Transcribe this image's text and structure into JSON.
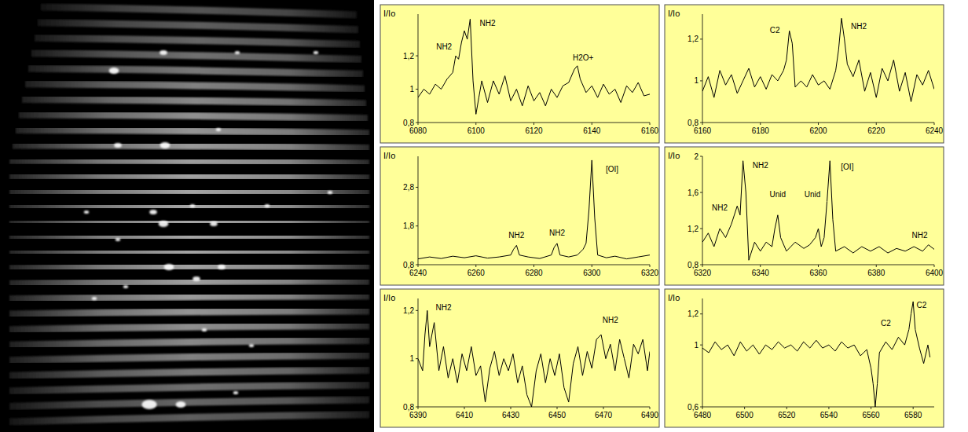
{
  "chart_data": [
    {
      "type": "line",
      "color": "#000000",
      "y_label": "I/Io",
      "xlim": [
        6080,
        6160
      ],
      "ylim": [
        0.8,
        1.45
      ],
      "xticks": [
        6080,
        6100,
        6120,
        6140,
        6160
      ],
      "yticks": [
        {
          "value": 0.8,
          "label": "0,8"
        },
        1,
        {
          "value": 1.2,
          "label": "1,2"
        }
      ],
      "x": [
        6080,
        6082,
        6084,
        6086,
        6088,
        6090,
        6092,
        6093,
        6094,
        6095,
        6096,
        6097,
        6098,
        6099,
        6100,
        6101,
        6102,
        6104,
        6106,
        6108,
        6110,
        6112,
        6114,
        6116,
        6118,
        6120,
        6122,
        6124,
        6126,
        6128,
        6130,
        6132,
        6134,
        6135,
        6136,
        6138,
        6140,
        6142,
        6144,
        6146,
        6148,
        6150,
        6152,
        6154,
        6156,
        6158,
        6160
      ],
      "values": [
        0.95,
        1.0,
        0.97,
        1.03,
        1.0,
        1.06,
        1.1,
        1.2,
        1.18,
        1.28,
        1.35,
        1.3,
        1.42,
        1.05,
        0.85,
        0.95,
        1.05,
        0.92,
        1.05,
        0.97,
        1.08,
        0.93,
        1.0,
        0.9,
        1.02,
        0.93,
        0.98,
        0.9,
        1.0,
        0.95,
        1.02,
        1.04,
        1.12,
        1.14,
        1.06,
        0.98,
        1.02,
        0.95,
        1.03,
        0.97,
        1.0,
        0.92,
        1.02,
        0.98,
        1.04,
        0.96,
        0.97
      ],
      "annotations": [
        {
          "text": "NH2",
          "x": 6089,
          "y": 1.24
        },
        {
          "text": "NH2",
          "x": 6104,
          "y": 1.38
        },
        {
          "text": "H2O+",
          "x": 6137,
          "y": 1.17
        }
      ]
    },
    {
      "type": "line",
      "color": "#000000",
      "y_label": "I/Io",
      "xlim": [
        6160,
        6240
      ],
      "ylim": [
        0.8,
        1.32
      ],
      "xticks": [
        6160,
        6180,
        6200,
        6220,
        6240
      ],
      "yticks": [
        {
          "value": 0.8,
          "label": "0,8"
        },
        1,
        {
          "value": 1.2,
          "label": "1,2"
        }
      ],
      "x": [
        6160,
        6162,
        6164,
        6166,
        6168,
        6170,
        6172,
        6174,
        6176,
        6178,
        6180,
        6182,
        6184,
        6186,
        6188,
        6189,
        6190,
        6191,
        6192,
        6194,
        6196,
        6198,
        6200,
        6202,
        6204,
        6206,
        6207,
        6208,
        6209,
        6210,
        6212,
        6214,
        6216,
        6218,
        6220,
        6222,
        6224,
        6226,
        6228,
        6230,
        6232,
        6234,
        6236,
        6238,
        6240
      ],
      "values": [
        0.95,
        1.02,
        0.92,
        1.05,
        0.98,
        1.03,
        0.94,
        1.0,
        1.06,
        0.97,
        1.02,
        0.96,
        1.03,
        1.0,
        1.05,
        1.1,
        1.24,
        1.18,
        0.97,
        1.0,
        0.97,
        1.03,
        0.98,
        1.0,
        0.96,
        1.05,
        1.15,
        1.3,
        1.2,
        1.08,
        1.02,
        1.1,
        0.95,
        1.04,
        0.92,
        1.06,
        1.0,
        1.1,
        0.95,
        1.04,
        0.9,
        1.03,
        0.98,
        1.05,
        0.96
      ],
      "annotations": [
        {
          "text": "C2",
          "x": 6185,
          "y": 1.23
        },
        {
          "text": "NH2",
          "x": 6214,
          "y": 1.25
        }
      ]
    },
    {
      "type": "line",
      "color": "#000000",
      "y_label": "I/Io",
      "xlim": [
        6240,
        6320
      ],
      "ylim": [
        0.8,
        3.6
      ],
      "xticks": [
        6240,
        6260,
        6280,
        6300,
        6320
      ],
      "yticks": [
        {
          "value": 0.8,
          "label": "0,8"
        },
        {
          "value": 1.8,
          "label": "1,8"
        },
        {
          "value": 2.8,
          "label": "2,8"
        }
      ],
      "x": [
        6240,
        6244,
        6248,
        6252,
        6256,
        6260,
        6264,
        6268,
        6272,
        6273,
        6274,
        6275,
        6278,
        6282,
        6286,
        6287,
        6288,
        6289,
        6292,
        6295,
        6297,
        6298,
        6299,
        6300,
        6301,
        6302,
        6305,
        6308,
        6312,
        6316,
        6320
      ],
      "values": [
        0.95,
        1.0,
        0.96,
        1.02,
        0.98,
        1.03,
        0.97,
        1.0,
        1.05,
        1.2,
        1.3,
        1.05,
        1.0,
        0.96,
        1.05,
        1.25,
        1.35,
        1.05,
        1.0,
        1.05,
        1.2,
        1.35,
        2.2,
        3.5,
        2.0,
        1.05,
        0.98,
        1.02,
        0.95,
        1.0,
        1.05
      ],
      "annotations": [
        {
          "text": "NH2",
          "x": 6274,
          "y": 1.5
        },
        {
          "text": "NH2",
          "x": 6288,
          "y": 1.55
        },
        {
          "text": "[OI]",
          "x": 6307,
          "y": 3.2
        }
      ]
    },
    {
      "type": "line",
      "color": "#000000",
      "y_label": "I/Io",
      "xlim": [
        6320,
        6400
      ],
      "ylim": [
        0.8,
        2.0
      ],
      "xticks": [
        6320,
        6340,
        6360,
        6380,
        6400
      ],
      "yticks": [
        {
          "value": 0.8,
          "label": "0,8"
        },
        {
          "value": 1.2,
          "label": "1,2"
        },
        {
          "value": 1.6,
          "label": "1,6"
        },
        2
      ],
      "x": [
        6320,
        6322,
        6324,
        6326,
        6328,
        6330,
        6332,
        6333,
        6334,
        6335,
        6336,
        6338,
        6340,
        6342,
        6344,
        6345,
        6346,
        6347,
        6349,
        6352,
        6355,
        6357,
        6359,
        6360,
        6361,
        6362,
        6363,
        6364,
        6365,
        6366,
        6369,
        6372,
        6375,
        6378,
        6381,
        6384,
        6387,
        6390,
        6393,
        6396,
        6398,
        6400
      ],
      "values": [
        1.05,
        1.15,
        1.0,
        1.2,
        1.1,
        1.25,
        1.45,
        1.35,
        1.95,
        1.6,
        0.85,
        1.05,
        0.95,
        1.05,
        1.0,
        1.2,
        1.35,
        1.1,
        0.95,
        1.05,
        0.98,
        1.02,
        1.1,
        1.2,
        1.0,
        1.1,
        1.5,
        1.95,
        1.3,
        0.95,
        1.0,
        0.93,
        1.0,
        0.95,
        1.0,
        0.93,
        0.98,
        0.95,
        1.0,
        0.95,
        1.02,
        0.97
      ],
      "annotations": [
        {
          "text": "NH2",
          "x": 6326,
          "y": 1.4
        },
        {
          "text": "NH2",
          "x": 6340,
          "y": 1.87
        },
        {
          "text": "Unid",
          "x": 6346,
          "y": 1.55
        },
        {
          "text": "Unid",
          "x": 6358,
          "y": 1.55
        },
        {
          "text": "[OI]",
          "x": 6370,
          "y": 1.85
        },
        {
          "text": "NH2",
          "x": 6395,
          "y": 1.1
        }
      ]
    },
    {
      "type": "line",
      "color": "#000000",
      "y_label": "I/Io",
      "xlim": [
        6390,
        6490
      ],
      "ylim": [
        0.8,
        1.25
      ],
      "xticks": [
        6390,
        6410,
        6430,
        6450,
        6470,
        6490
      ],
      "yticks": [
        {
          "value": 0.8,
          "label": "0,8"
        },
        1,
        {
          "value": 1.2,
          "label": "1,2"
        }
      ],
      "x": [
        6390,
        6392,
        6393,
        6394,
        6395,
        6397,
        6399,
        6401,
        6403,
        6405,
        6407,
        6409,
        6411,
        6413,
        6415,
        6417,
        6419,
        6421,
        6423,
        6425,
        6427,
        6429,
        6431,
        6433,
        6435,
        6437,
        6439,
        6441,
        6443,
        6445,
        6447,
        6449,
        6451,
        6453,
        6455,
        6457,
        6459,
        6461,
        6463,
        6465,
        6467,
        6469,
        6471,
        6473,
        6475,
        6477,
        6479,
        6481,
        6483,
        6485,
        6487,
        6489,
        6490
      ],
      "values": [
        1.0,
        0.95,
        1.1,
        1.2,
        1.05,
        1.15,
        0.95,
        1.05,
        0.92,
        1.0,
        0.9,
        1.02,
        0.95,
        1.05,
        0.93,
        0.97,
        0.82,
        0.96,
        1.03,
        0.93,
        1.0,
        0.95,
        1.02,
        0.9,
        0.97,
        0.85,
        0.8,
        0.95,
        1.02,
        0.9,
        1.0,
        0.93,
        1.02,
        0.88,
        0.82,
        0.98,
        1.05,
        0.93,
        1.03,
        0.96,
        1.08,
        1.1,
        1.0,
        1.06,
        0.95,
        1.08,
        1.0,
        0.92,
        1.06,
        1.02,
        1.08,
        0.95,
        1.03
      ],
      "annotations": [
        {
          "text": "NH2",
          "x": 6401,
          "y": 1.2
        },
        {
          "text": "NH2",
          "x": 6473,
          "y": 1.15
        }
      ]
    },
    {
      "type": "line",
      "color": "#000000",
      "y_label": "I/Io",
      "xlim": [
        6480,
        6590
      ],
      "ylim": [
        0.6,
        1.3
      ],
      "xticks": [
        6480,
        6500,
        6520,
        6540,
        6560,
        6580
      ],
      "yticks": [
        {
          "value": 0.6,
          "label": "0,6"
        },
        1,
        {
          "value": 1.2,
          "label": "1,2"
        }
      ],
      "x": [
        6480,
        6483,
        6486,
        6489,
        6492,
        6495,
        6498,
        6501,
        6504,
        6507,
        6510,
        6513,
        6516,
        6519,
        6522,
        6525,
        6528,
        6531,
        6534,
        6537,
        6540,
        6543,
        6546,
        6549,
        6552,
        6555,
        6558,
        6560,
        6561,
        6562,
        6563,
        6564,
        6567,
        6570,
        6573,
        6576,
        6578,
        6579,
        6580,
        6581,
        6583,
        6585,
        6587,
        6588
      ],
      "values": [
        0.98,
        0.95,
        1.02,
        0.97,
        1.0,
        0.93,
        1.02,
        0.96,
        1.0,
        0.94,
        1.0,
        0.97,
        1.02,
        0.98,
        1.0,
        0.96,
        1.02,
        0.98,
        1.03,
        0.98,
        1.0,
        0.96,
        1.02,
        0.98,
        1.0,
        0.93,
        0.97,
        0.85,
        0.75,
        0.6,
        0.75,
        0.95,
        1.02,
        0.97,
        1.05,
        1.0,
        1.1,
        1.2,
        1.28,
        1.1,
        0.98,
        0.88,
        1.0,
        0.92
      ],
      "annotations": [
        {
          "text": "C2",
          "x": 6567,
          "y": 1.12
        },
        {
          "text": "C2",
          "x": 6584,
          "y": 1.24
        }
      ]
    }
  ]
}
